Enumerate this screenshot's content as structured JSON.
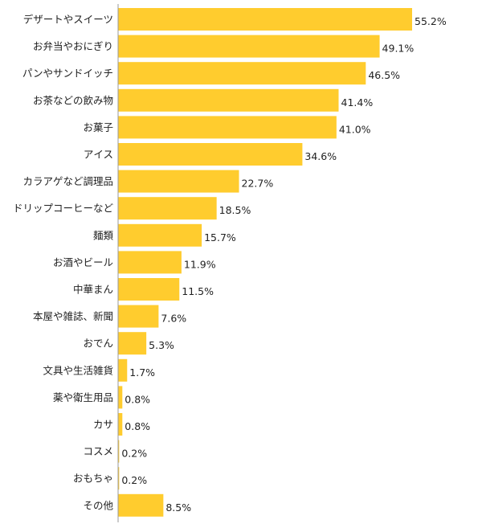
{
  "chart_data": {
    "type": "bar",
    "orientation": "horizontal",
    "categories": [
      "デザートやスイーツ",
      "お弁当やおにぎり",
      "パンやサンドイッチ",
      "お茶などの飲み物",
      "お菓子",
      "アイス",
      "カラアゲなど調理品",
      "ドリップコーヒーなど",
      "麺類",
      "お酒やビール",
      "中華まん",
      "本屋や雑誌、新聞",
      "おでん",
      "文具や生活雑貨",
      "薬や衛生用品",
      "カサ",
      "コスメ",
      "おもちゃ",
      "その他"
    ],
    "values": [
      55.2,
      49.1,
      46.5,
      41.4,
      41.0,
      34.6,
      22.7,
      18.5,
      15.7,
      11.9,
      11.5,
      7.6,
      5.3,
      1.7,
      0.8,
      0.8,
      0.2,
      0.2,
      8.5
    ],
    "value_labels": [
      "55.2%",
      "49.1%",
      "46.5%",
      "41.4%",
      "41.0%",
      "34.6%",
      "22.7%",
      "18.5%",
      "15.7%",
      "11.9%",
      "11.5%",
      "7.6%",
      "5.3%",
      "1.7%",
      "0.8%",
      "0.8%",
      "0.2%",
      "0.2%",
      "8.5%"
    ],
    "unit": "%",
    "bar_color": "#ffcc2e",
    "axis_color": "#999999",
    "grid": false,
    "legend": "none"
  }
}
